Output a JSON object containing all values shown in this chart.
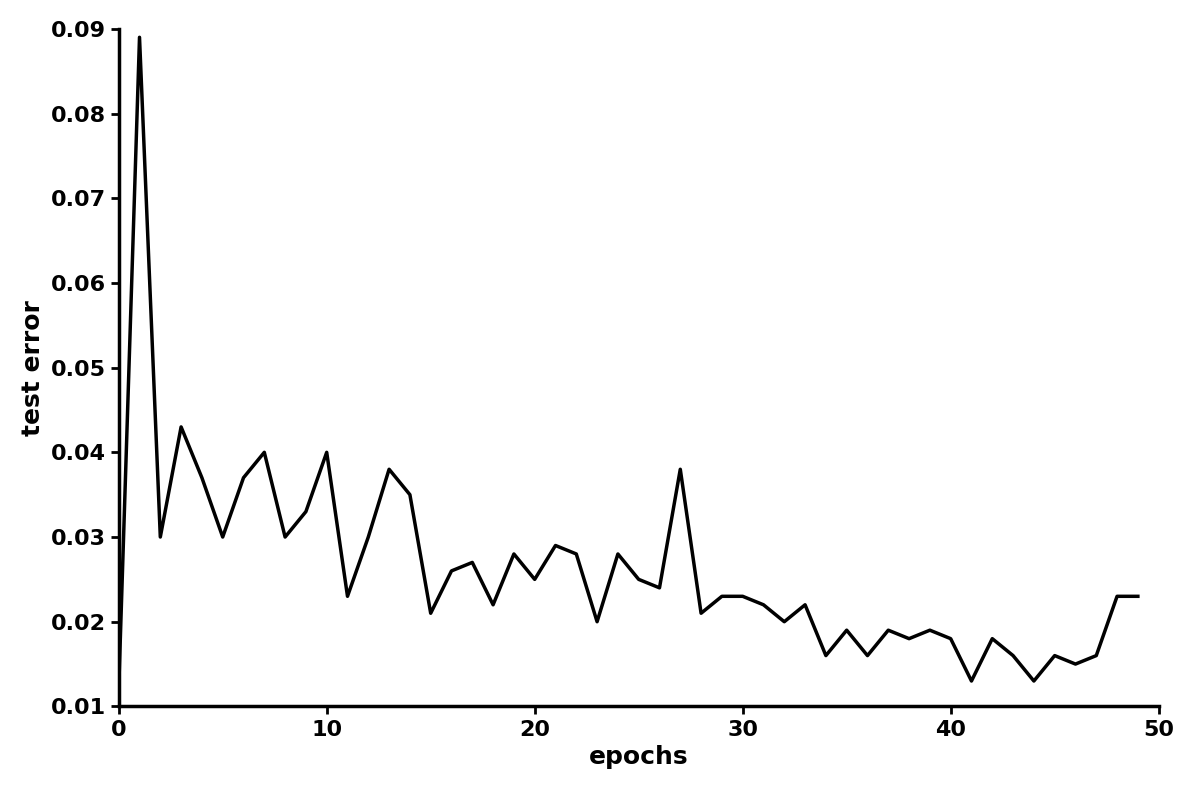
{
  "xlabel": "epochs",
  "ylabel": "test error",
  "xlim": [
    0,
    50
  ],
  "ylim": [
    0.01,
    0.09
  ],
  "yticks": [
    0.01,
    0.02,
    0.03,
    0.04,
    0.05,
    0.06,
    0.07,
    0.08,
    0.09
  ],
  "xticks": [
    0,
    10,
    20,
    30,
    40,
    50
  ],
  "line_color": "#000000",
  "line_width": 2.5,
  "background_color": "#ffffff",
  "xlabel_fontsize": 18,
  "ylabel_fontsize": 18,
  "tick_fontsize": 16,
  "x_data": [
    0,
    1,
    2,
    3,
    4,
    5,
    6,
    7,
    8,
    9,
    10,
    11,
    12,
    13,
    14,
    15,
    16,
    17,
    18,
    19,
    20,
    21,
    22,
    23,
    24,
    25,
    26,
    27,
    28,
    29,
    30,
    31,
    32,
    33,
    34,
    35,
    36,
    37,
    38,
    39,
    40,
    41,
    42,
    43,
    44,
    45,
    46,
    47,
    48,
    49
  ],
  "y_data": [
    0.012,
    0.089,
    0.03,
    0.043,
    0.037,
    0.03,
    0.037,
    0.04,
    0.03,
    0.033,
    0.04,
    0.023,
    0.03,
    0.038,
    0.035,
    0.021,
    0.026,
    0.027,
    0.022,
    0.028,
    0.025,
    0.029,
    0.028,
    0.02,
    0.028,
    0.025,
    0.024,
    0.038,
    0.021,
    0.023,
    0.023,
    0.022,
    0.02,
    0.022,
    0.016,
    0.019,
    0.016,
    0.019,
    0.018,
    0.019,
    0.018,
    0.013,
    0.018,
    0.016,
    0.013,
    0.016,
    0.015,
    0.016,
    0.023,
    0.023
  ]
}
